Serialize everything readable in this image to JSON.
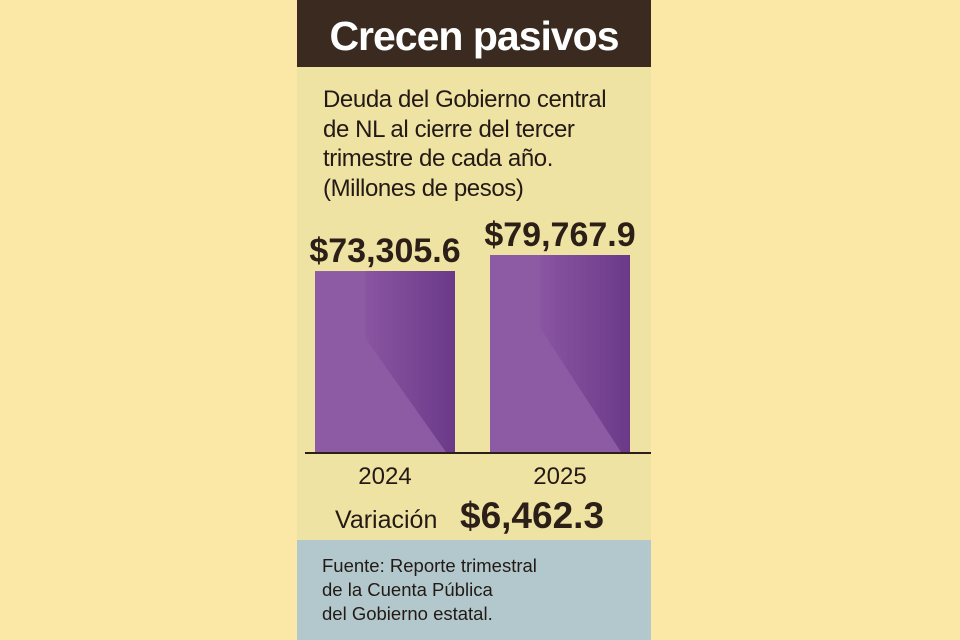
{
  "header": {
    "title": "Crecen pasivos"
  },
  "subtitle_lines": [
    "Deuda del Gobierno central",
    "de NL al cierre del tercer",
    "trimestre de cada año.",
    "(Millones de pesos)"
  ],
  "chart_data": {
    "type": "bar",
    "categories": [
      "2024",
      "2025"
    ],
    "values": [
      73305.6,
      79767.9
    ],
    "value_labels": [
      "$73,305.6",
      "$79,767.9"
    ],
    "title": "Deuda del Gobierno central de NL al cierre del tercer trimestre de cada año.",
    "ylabel": "(Millones de pesos)",
    "grid": false,
    "bar_color": "#8d5ba4",
    "bar_shadow_color": "#6a3a88"
  },
  "variation": {
    "label": "Variación",
    "value": "$6,462.3"
  },
  "source_lines": [
    "Fuente: Reporte trimestral",
    "de la Cuenta Pública",
    "del Gobierno estatal."
  ],
  "colors": {
    "page_background": "#fbe7a6",
    "card_background": "#efe3a3",
    "header_background": "#3a2a1f",
    "source_background": "#b2c8cc",
    "text": "#231a15"
  }
}
